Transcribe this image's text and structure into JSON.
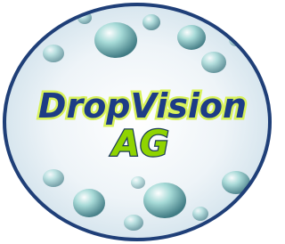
{
  "logo": {
    "name": "DropVision",
    "suffix": "AG"
  }
}
